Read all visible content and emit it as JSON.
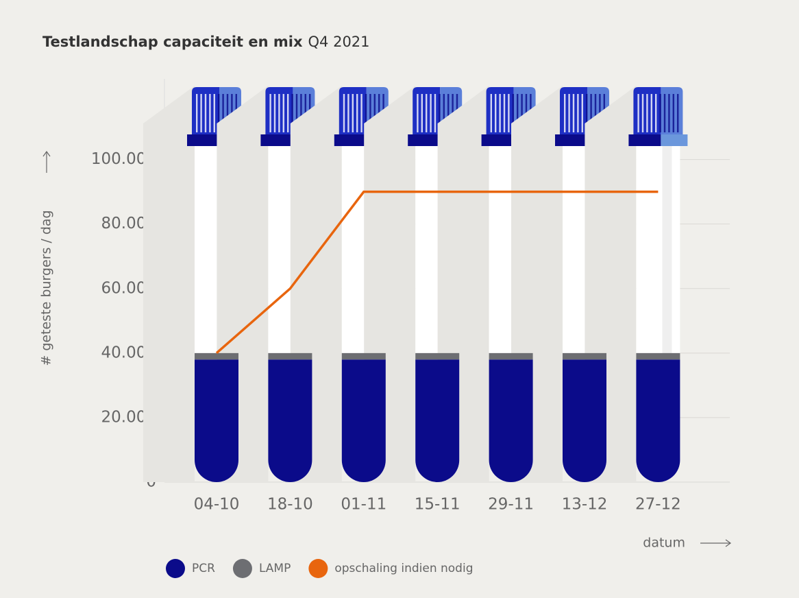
{
  "chart_data": {
    "type": "bar",
    "stacked": true,
    "title": "Testlandschap capaciteit en mix",
    "subtitle": "Q4 2021",
    "x_label": "datum",
    "y_label": "# geteste burgers / dag",
    "categories": [
      "04-10",
      "18-10",
      "01-11",
      "15-11",
      "29-11",
      "13-12",
      "27-12"
    ],
    "series": [
      {
        "name": "PCR",
        "type": "bar",
        "color": "#0b0b8a",
        "values": [
          38000,
          38000,
          38000,
          38000,
          38000,
          38000,
          38000
        ]
      },
      {
        "name": "LAMP",
        "type": "bar",
        "color": "#6d6e72",
        "values": [
          2000,
          2000,
          2000,
          2000,
          2000,
          2000,
          2000
        ]
      },
      {
        "name": "opschaling indien nodig",
        "type": "line",
        "color": "#e8650e",
        "values": [
          40000,
          60000,
          90000,
          90000,
          90000,
          90000,
          90000
        ]
      }
    ],
    "ylim": [
      0,
      125000
    ],
    "yticks": [
      0,
      {
        "value": 20000,
        "label": "20.000"
      },
      {
        "value": 40000,
        "label": "40.000"
      },
      {
        "value": 60000,
        "label": "60.000"
      },
      {
        "value": 80000,
        "label": "80.000"
      },
      {
        "value": 100000,
        "label": "100.000"
      }
    ],
    "grid": true
  }
}
